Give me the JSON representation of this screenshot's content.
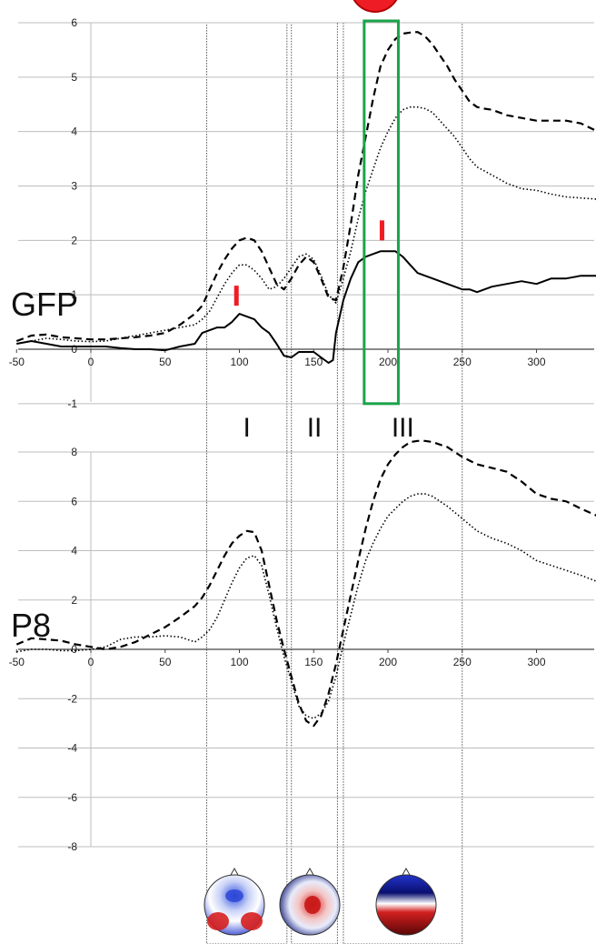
{
  "chart_data": [
    {
      "type": "line",
      "title": "",
      "panel_label": "GFP",
      "xlim": [
        -50,
        345
      ],
      "ylim": [
        -1,
        6
      ],
      "x_ticks": [
        "-50",
        "0",
        "50",
        "100",
        "150",
        "200",
        "250",
        "300"
      ],
      "y_ticks": [
        "-1",
        "0",
        "1",
        "2",
        "3",
        "4",
        "5",
        "6"
      ],
      "grid": "horizontal",
      "series": [
        {
          "style": "dashed",
          "x": [
            -50,
            -40,
            -30,
            -20,
            -10,
            0,
            10,
            20,
            30,
            40,
            50,
            60,
            70,
            75,
            80,
            85,
            90,
            95,
            100,
            105,
            110,
            115,
            120,
            125,
            130,
            135,
            140,
            145,
            150,
            155,
            160,
            165,
            170,
            175,
            180,
            185,
            190,
            195,
            200,
            205,
            210,
            215,
            220,
            225,
            230,
            235,
            240,
            245,
            250,
            255,
            260,
            265,
            270,
            280,
            290,
            300,
            310,
            320,
            330,
            345
          ],
          "y": [
            0.15,
            0.25,
            0.27,
            0.22,
            0.2,
            0.18,
            0.18,
            0.2,
            0.22,
            0.25,
            0.3,
            0.45,
            0.65,
            0.8,
            1.1,
            1.4,
            1.65,
            1.85,
            2.0,
            2.05,
            2.0,
            1.8,
            1.5,
            1.2,
            1.1,
            1.3,
            1.55,
            1.7,
            1.6,
            1.3,
            0.95,
            0.9,
            1.5,
            2.3,
            3.2,
            3.9,
            4.6,
            5.2,
            5.5,
            5.7,
            5.8,
            5.82,
            5.83,
            5.75,
            5.6,
            5.4,
            5.2,
            4.95,
            4.75,
            4.55,
            4.45,
            4.42,
            4.4,
            4.3,
            4.25,
            4.2,
            4.2,
            4.2,
            4.15,
            3.95
          ]
        },
        {
          "style": "dotted",
          "x": [
            -50,
            -40,
            -30,
            -20,
            -10,
            0,
            10,
            20,
            30,
            40,
            50,
            60,
            70,
            75,
            80,
            85,
            90,
            95,
            100,
            105,
            110,
            115,
            120,
            125,
            130,
            135,
            140,
            145,
            150,
            155,
            160,
            165,
            170,
            175,
            180,
            185,
            190,
            195,
            200,
            205,
            210,
            215,
            220,
            225,
            230,
            235,
            240,
            245,
            250,
            255,
            260,
            270,
            280,
            290,
            300,
            310,
            320,
            330,
            345
          ],
          "y": [
            0.1,
            0.15,
            0.2,
            0.18,
            0.15,
            0.14,
            0.15,
            0.2,
            0.25,
            0.3,
            0.35,
            0.4,
            0.45,
            0.55,
            0.7,
            0.95,
            1.2,
            1.4,
            1.55,
            1.55,
            1.45,
            1.3,
            1.1,
            1.15,
            1.3,
            1.5,
            1.7,
            1.75,
            1.65,
            1.35,
            1.0,
            0.85,
            1.3,
            1.8,
            2.4,
            2.9,
            3.3,
            3.7,
            4.0,
            4.25,
            4.4,
            4.45,
            4.45,
            4.42,
            4.35,
            4.2,
            4.05,
            3.9,
            3.7,
            3.5,
            3.35,
            3.2,
            3.05,
            2.95,
            2.92,
            2.85,
            2.8,
            2.78,
            2.75
          ]
        },
        {
          "style": "solid",
          "x": [
            -50,
            -40,
            -30,
            -20,
            -10,
            0,
            10,
            20,
            30,
            40,
            50,
            60,
            70,
            75,
            80,
            85,
            90,
            95,
            100,
            105,
            110,
            115,
            120,
            125,
            130,
            135,
            140,
            145,
            150,
            155,
            160,
            163,
            165,
            170,
            175,
            180,
            185,
            190,
            195,
            200,
            205,
            210,
            215,
            220,
            230,
            240,
            250,
            255,
            260,
            265,
            270,
            280,
            290,
            300,
            310,
            320,
            330,
            340,
            345
          ],
          "y": [
            0.1,
            0.15,
            0.1,
            0.05,
            0.05,
            0.05,
            0.05,
            0.02,
            0.0,
            0.0,
            -0.02,
            0.05,
            0.1,
            0.3,
            0.35,
            0.4,
            0.4,
            0.5,
            0.65,
            0.6,
            0.55,
            0.4,
            0.3,
            0.1,
            -0.12,
            -0.15,
            -0.05,
            -0.05,
            -0.05,
            -0.15,
            -0.25,
            -0.2,
            0.3,
            0.9,
            1.3,
            1.6,
            1.7,
            1.75,
            1.8,
            1.8,
            1.8,
            1.7,
            1.55,
            1.4,
            1.3,
            1.2,
            1.1,
            1.1,
            1.05,
            1.1,
            1.15,
            1.2,
            1.25,
            1.2,
            1.3,
            1.3,
            1.35,
            1.35,
            1.25
          ]
        }
      ],
      "markers": [
        {
          "x": 98,
          "y": 0.8
        },
        {
          "x": 196,
          "y": 2.0
        }
      ]
    },
    {
      "type": "line",
      "title": "",
      "panel_label": "P8",
      "xlim": [
        -50,
        345
      ],
      "ylim": [
        -8,
        8.5
      ],
      "x_ticks": [
        "-50",
        "0",
        "50",
        "100",
        "150",
        "200",
        "250",
        "300"
      ],
      "y_ticks": [
        "-8",
        "-6",
        "-4",
        "-2",
        "0",
        "2",
        "4",
        "6",
        "8"
      ],
      "grid": "horizontal",
      "series": [
        {
          "style": "dashed",
          "x": [
            -50,
            -40,
            -30,
            -20,
            -10,
            0,
            10,
            20,
            30,
            40,
            50,
            60,
            70,
            75,
            80,
            85,
            90,
            95,
            100,
            105,
            110,
            115,
            120,
            125,
            130,
            135,
            140,
            145,
            150,
            155,
            160,
            165,
            170,
            175,
            180,
            185,
            190,
            195,
            200,
            205,
            210,
            215,
            220,
            225,
            230,
            240,
            250,
            260,
            270,
            280,
            290,
            300,
            310,
            320,
            330,
            345
          ],
          "y": [
            0.2,
            0.45,
            0.4,
            0.35,
            0.2,
            0.1,
            0.0,
            0.1,
            0.3,
            0.6,
            0.9,
            1.3,
            1.75,
            2.1,
            2.6,
            3.2,
            3.8,
            4.3,
            4.6,
            4.8,
            4.75,
            4.0,
            2.6,
            1.2,
            0.0,
            -1.1,
            -2.2,
            -2.9,
            -3.1,
            -2.7,
            -1.8,
            -0.6,
            0.8,
            2.2,
            3.6,
            4.9,
            6.0,
            6.9,
            7.5,
            7.9,
            8.2,
            8.4,
            8.45,
            8.45,
            8.4,
            8.2,
            7.8,
            7.5,
            7.35,
            7.2,
            6.8,
            6.3,
            6.1,
            6.0,
            5.7,
            5.3
          ]
        },
        {
          "style": "dotted",
          "x": [
            -50,
            -40,
            -30,
            -20,
            -10,
            0,
            10,
            20,
            30,
            40,
            50,
            60,
            70,
            75,
            80,
            85,
            90,
            95,
            100,
            105,
            110,
            115,
            120,
            125,
            130,
            135,
            140,
            145,
            150,
            155,
            160,
            165,
            170,
            175,
            180,
            185,
            190,
            195,
            200,
            205,
            210,
            215,
            220,
            225,
            230,
            240,
            250,
            260,
            270,
            280,
            290,
            300,
            310,
            320,
            330,
            345
          ],
          "y": [
            -0.1,
            0.0,
            0.0,
            -0.05,
            -0.05,
            0.0,
            0.1,
            0.4,
            0.5,
            0.5,
            0.55,
            0.5,
            0.3,
            0.5,
            0.8,
            1.3,
            2.0,
            2.7,
            3.3,
            3.7,
            3.8,
            3.4,
            2.2,
            0.9,
            -0.3,
            -1.3,
            -2.3,
            -2.7,
            -2.8,
            -2.6,
            -2.1,
            -1.1,
            0.2,
            1.4,
            2.6,
            3.6,
            4.3,
            4.9,
            5.4,
            5.7,
            6.0,
            6.2,
            6.3,
            6.3,
            6.2,
            5.8,
            5.3,
            4.8,
            4.5,
            4.3,
            4.0,
            3.6,
            3.4,
            3.2,
            3.0,
            2.65
          ]
        }
      ]
    }
  ],
  "windows": [
    {
      "label": "I",
      "start": 78,
      "end": 132
    },
    {
      "label": "II",
      "start": 135,
      "end": 166
    },
    {
      "label": "III",
      "start": 170,
      "end": 250
    }
  ],
  "highlight_window": {
    "start": 184,
    "end": 207,
    "color": "#1aa34a"
  },
  "colors": {
    "line": "#000000",
    "marker": "#ee1c25",
    "grid": "#bdbdbd",
    "window": "#555555"
  },
  "topomaps": [
    {
      "name": "topomap-window-1",
      "pattern": "blue-top-red-bottom"
    },
    {
      "name": "topomap-window-2",
      "pattern": "red-center-blue-rim"
    },
    {
      "name": "topomap-window-3",
      "pattern": "blue-top-darkred-bottom"
    }
  ]
}
